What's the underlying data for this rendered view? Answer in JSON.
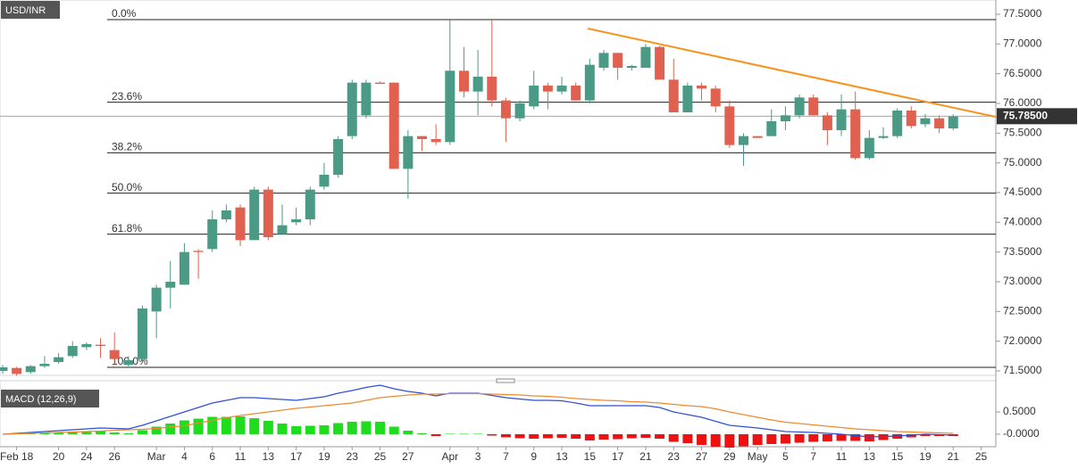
{
  "chart_data": [
    {
      "type": "candlestick",
      "title": "USD/INR",
      "open": [
        71.5,
        71.55,
        71.48,
        71.58,
        71.65,
        71.75,
        71.9,
        71.94,
        71.85,
        71.6,
        71.7,
        72.5,
        72.9,
        72.95,
        73.52,
        73.55,
        74.05,
        74.25,
        73.7,
        74.55,
        73.8,
        74.0,
        74.05,
        74.6,
        74.8,
        75.45,
        75.8,
        76.35,
        76.35,
        74.9,
        75.45,
        75.4,
        75.35,
        76.55,
        76.2,
        76.45,
        76.05,
        75.75,
        75.95,
        76.3,
        76.2,
        76.3,
        76.05,
        76.6,
        76.85,
        76.6,
        76.6,
        76.95,
        76.4,
        75.85,
        76.3,
        76.25,
        75.95,
        75.3,
        75.45,
        75.45,
        75.7,
        75.8,
        76.1,
        75.8,
        75.55,
        75.9,
        75.08,
        75.42,
        75.45,
        75.88,
        75.65,
        75.75,
        75.58
      ],
      "high": [
        71.6,
        71.57,
        71.6,
        71.75,
        71.8,
        72.0,
        71.98,
        72.05,
        72.15,
        71.75,
        72.6,
        72.95,
        73.35,
        73.65,
        73.55,
        74.2,
        74.3,
        74.3,
        74.6,
        74.6,
        74.3,
        74.25,
        74.6,
        75.0,
        75.45,
        76.4,
        76.4,
        76.37,
        76.35,
        75.55,
        75.45,
        75.65,
        77.4,
        76.95,
        76.9,
        77.4,
        76.1,
        76.05,
        76.55,
        76.35,
        76.45,
        76.35,
        76.75,
        76.9,
        76.85,
        76.65,
        77.0,
        76.97,
        76.75,
        76.35,
        76.35,
        76.3,
        76.05,
        75.5,
        75.45,
        75.9,
        75.95,
        76.15,
        76.15,
        75.85,
        76.15,
        76.2,
        75.55,
        75.6,
        75.92,
        75.95,
        75.82,
        75.8,
        75.82
      ],
      "low": [
        71.45,
        71.42,
        71.45,
        71.55,
        71.62,
        71.72,
        71.85,
        71.72,
        71.6,
        71.55,
        71.65,
        72.05,
        72.55,
        72.95,
        73.05,
        73.5,
        74.0,
        73.6,
        73.7,
        73.7,
        73.8,
        73.95,
        73.95,
        74.55,
        74.75,
        75.4,
        75.75,
        76.33,
        74.9,
        74.4,
        75.2,
        75.3,
        75.3,
        76.1,
        75.8,
        75.95,
        75.35,
        75.7,
        75.9,
        75.9,
        76.15,
        76.05,
        76.0,
        76.55,
        76.4,
        76.55,
        76.6,
        76.4,
        75.85,
        75.85,
        76.05,
        75.85,
        75.25,
        74.95,
        75.42,
        75.45,
        75.55,
        75.75,
        75.8,
        75.3,
        75.45,
        75.05,
        75.05,
        75.4,
        75.42,
        75.58,
        75.6,
        75.5,
        75.55
      ],
      "close": [
        71.56,
        71.45,
        71.58,
        71.62,
        71.73,
        71.92,
        71.95,
        71.92,
        71.7,
        71.68,
        72.55,
        72.9,
        73.0,
        73.5,
        73.5,
        74.05,
        74.2,
        73.7,
        74.55,
        73.75,
        73.95,
        74.05,
        74.55,
        74.8,
        75.4,
        76.35,
        76.35,
        76.33,
        74.9,
        75.45,
        75.4,
        75.35,
        76.55,
        76.2,
        76.45,
        76.05,
        75.75,
        76.0,
        76.3,
        76.2,
        76.3,
        76.05,
        76.65,
        76.85,
        76.6,
        76.63,
        76.95,
        76.4,
        75.85,
        76.3,
        76.25,
        75.95,
        75.3,
        75.45,
        75.42,
        75.7,
        75.8,
        76.1,
        75.8,
        75.55,
        75.9,
        75.08,
        75.42,
        75.45,
        75.88,
        75.62,
        75.75,
        75.58,
        75.78
      ],
      "up_color": "#4a9a86",
      "down_color": "#e0614f",
      "xlim": [
        -0.19,
        71.05
      ],
      "ylim": [
        71.44,
        77.74
      ],
      "yticks": [
        {
          "value": 71.5,
          "label": "71.5000"
        },
        {
          "value": 72.0,
          "label": "72.0000"
        },
        {
          "value": 72.5,
          "label": "72.5000"
        },
        {
          "value": 73.0,
          "label": "73.0000"
        },
        {
          "value": 73.5,
          "label": "73.5000"
        },
        {
          "value": 74.0,
          "label": "74.0000"
        },
        {
          "value": 74.5,
          "label": "74.5000"
        },
        {
          "value": 75.0,
          "label": "75.0000"
        },
        {
          "value": 75.5,
          "label": "75.5000"
        },
        {
          "value": 76.0,
          "label": "76.0000"
        },
        {
          "value": 76.5,
          "label": "76.5000"
        },
        {
          "value": 77.0,
          "label": "77.0000"
        },
        {
          "value": 77.5,
          "label": "77.5000"
        }
      ],
      "xticks": [
        {
          "value": 1,
          "label": "Feb 18"
        },
        {
          "value": 4,
          "label": "20"
        },
        {
          "value": 6,
          "label": "24"
        },
        {
          "value": 8,
          "label": "26"
        },
        {
          "value": 11,
          "label": "Mar"
        },
        {
          "value": 13,
          "label": "4"
        },
        {
          "value": 15,
          "label": "6"
        },
        {
          "value": 17,
          "label": "11"
        },
        {
          "value": 19,
          "label": "13"
        },
        {
          "value": 21,
          "label": "17"
        },
        {
          "value": 23,
          "label": "19"
        },
        {
          "value": 25,
          "label": "23"
        },
        {
          "value": 27,
          "label": "25"
        },
        {
          "value": 29,
          "label": "27"
        },
        {
          "value": 32,
          "label": "Apr"
        },
        {
          "value": 34,
          "label": "3"
        },
        {
          "value": 36,
          "label": "7"
        },
        {
          "value": 38,
          "label": "9"
        },
        {
          "value": 40,
          "label": "13"
        },
        {
          "value": 42,
          "label": "15"
        },
        {
          "value": 44,
          "label": "17"
        },
        {
          "value": 46,
          "label": "21"
        },
        {
          "value": 48,
          "label": "23"
        },
        {
          "value": 50,
          "label": "27"
        },
        {
          "value": 52,
          "label": "29"
        },
        {
          "value": 54,
          "label": "May"
        },
        {
          "value": 56,
          "label": "5"
        },
        {
          "value": 58,
          "label": "7"
        },
        {
          "value": 60,
          "label": "11"
        },
        {
          "value": 62,
          "label": "13"
        },
        {
          "value": 64,
          "label": "15"
        },
        {
          "value": 66,
          "label": "19"
        },
        {
          "value": 68,
          "label": "21"
        },
        {
          "value": 70,
          "label": "25"
        }
      ],
      "levels": [
        {
          "value": 77.41,
          "label": "0.0%"
        },
        {
          "value": 76.02,
          "label": "23.6%"
        },
        {
          "value": 75.17,
          "label": "38.2%"
        },
        {
          "value": 74.49,
          "label": "50.0%"
        },
        {
          "value": 73.8,
          "label": "61.8%"
        },
        {
          "value": 71.56,
          "label": "100.0%"
        }
      ],
      "trendline": {
        "x": [
          41.85,
          72.8
        ],
        "values": [
          77.26,
          75.685
        ],
        "color": "#f7931e"
      },
      "last_price": {
        "value": 75.785,
        "label": "75.78500"
      }
    },
    {
      "type": "macd",
      "title": "MACD (12,26,9)",
      "ylim": [
        -0.26,
        1.18
      ],
      "yticks": [
        {
          "value": 0.5,
          "label": "0.5000"
        },
        {
          "value": 0,
          "label": "-0.0000"
        }
      ],
      "series": [
        {
          "color": "#2f4fd8",
          "values": [
            0.0,
            0.02,
            0.04,
            0.06,
            0.08,
            0.1,
            0.12,
            0.14,
            0.13,
            0.12,
            0.2,
            0.3,
            0.4,
            0.5,
            0.6,
            0.7,
            0.76,
            0.82,
            0.82,
            0.8,
            0.78,
            0.76,
            0.8,
            0.84,
            0.92,
            0.98,
            1.05,
            1.1,
            1.02,
            0.96,
            0.92,
            0.86,
            0.92,
            0.92,
            0.92,
            0.87,
            0.82,
            0.79,
            0.76,
            0.76,
            0.75,
            0.7,
            0.64,
            0.64,
            0.64,
            0.64,
            0.64,
            0.6,
            0.5,
            0.44,
            0.38,
            0.29,
            0.2,
            0.17,
            0.14,
            0.1,
            0.06,
            0.05,
            0.04,
            0.02,
            0.0,
            -0.03,
            -0.06,
            -0.05,
            -0.04,
            -0.02,
            0.0,
            -0.01,
            -0.02
          ]
        },
        {
          "color": "#f0892e",
          "values": [
            0,
            0.01,
            0.02,
            0.03,
            0.04,
            0.05,
            0.06,
            0.07,
            0.09,
            0.1,
            0.11,
            0.13,
            0.16,
            0.19,
            0.25,
            0.31,
            0.37,
            0.42,
            0.46,
            0.5,
            0.54,
            0.58,
            0.61,
            0.64,
            0.67,
            0.7,
            0.76,
            0.82,
            0.85,
            0.88,
            0.9,
            0.9,
            0.91,
            0.91,
            0.91,
            0.9,
            0.89,
            0.88,
            0.86,
            0.85,
            0.83,
            0.8,
            0.78,
            0.76,
            0.75,
            0.73,
            0.72,
            0.7,
            0.67,
            0.64,
            0.62,
            0.57,
            0.5,
            0.44,
            0.38,
            0.32,
            0.27,
            0.24,
            0.21,
            0.18,
            0.15,
            0.12,
            0.1,
            0.08,
            0.06,
            0.05,
            0.04,
            0.03,
            0.02
          ]
        }
      ],
      "histogram": {
        "pos_color": "#1fdc1f",
        "neg_color": "#ee1111",
        "values": [
          0,
          0.01,
          0.02,
          0.03,
          0.04,
          0.05,
          0.06,
          0.07,
          0.04,
          0.02,
          0.09,
          0.17,
          0.24,
          0.31,
          0.35,
          0.39,
          0.39,
          0.4,
          0.36,
          0.3,
          0.24,
          0.18,
          0.19,
          0.2,
          0.25,
          0.28,
          0.29,
          0.28,
          0.17,
          0.08,
          0.02,
          -0.04,
          0.01,
          0.01,
          0.01,
          -0.03,
          -0.07,
          -0.09,
          -0.1,
          -0.09,
          -0.08,
          -0.1,
          -0.14,
          -0.12,
          -0.11,
          -0.09,
          -0.08,
          -0.1,
          -0.17,
          -0.2,
          -0.24,
          -0.28,
          -0.3,
          -0.27,
          -0.24,
          -0.22,
          -0.21,
          -0.19,
          -0.17,
          -0.16,
          -0.15,
          -0.15,
          -0.16,
          -0.13,
          -0.1,
          -0.07,
          -0.04,
          -0.04,
          -0.04
        ]
      }
    }
  ]
}
